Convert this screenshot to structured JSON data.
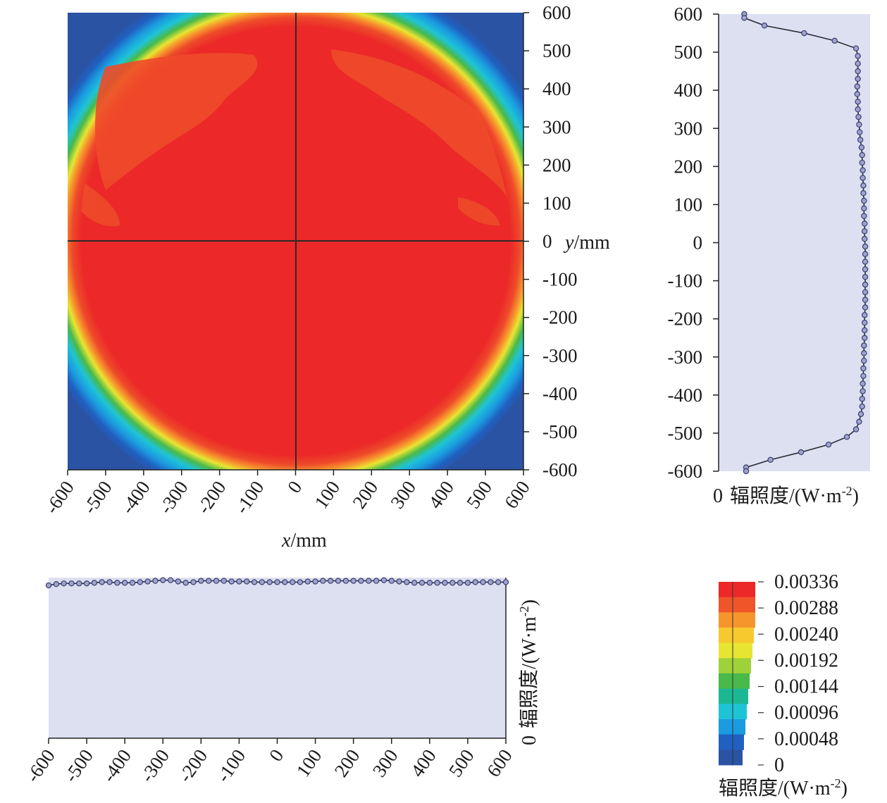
{
  "chart_data": [
    {
      "type": "heatmap",
      "title": "",
      "xlabel_var": "x",
      "xlabel_unit": "/mm",
      "ylabel_var": "y",
      "ylabel_unit": "/mm",
      "xlim": [
        -600,
        600
      ],
      "ylim": [
        -600,
        600
      ],
      "x_ticks": [
        "-600",
        "-500",
        "-400",
        "-300",
        "-200",
        "-100",
        "0",
        "100",
        "200",
        "300",
        "400",
        "500",
        "600"
      ],
      "y_ticks": [
        "600",
        "500",
        "400",
        "300",
        "200",
        "100",
        "0",
        "-100",
        "-200",
        "-300",
        "-400",
        "-500",
        "-600"
      ],
      "description_values": {
        "circle_radius_mm": 600,
        "center_irradiance": 0.00336,
        "outside_irradiance": 0
      },
      "crosshair": {
        "x": 0,
        "y": 0
      },
      "colors": {
        "background": "#2a53a4",
        "inner": "#ec2828",
        "inner_patches": "#ee4a2a"
      }
    },
    {
      "type": "line",
      "orientation": "vertical",
      "xlabel": "辐照度/(W·m",
      "xlabel_sup": "-2",
      "xlabel_close": ")",
      "x_zero_label": "0",
      "ylim": [
        -600,
        600
      ],
      "y_ticks": [
        "600",
        "500",
        "400",
        "300",
        "200",
        "100",
        "0",
        "-100",
        "-200",
        "-300",
        "-400",
        "-500",
        "-600"
      ],
      "y": [
        600,
        590,
        570,
        550,
        530,
        510,
        490,
        470,
        450,
        430,
        410,
        390,
        370,
        350,
        330,
        310,
        290,
        270,
        250,
        230,
        210,
        190,
        170,
        150,
        130,
        110,
        90,
        70,
        50,
        30,
        10,
        -10,
        -30,
        -50,
        -70,
        -90,
        -110,
        -130,
        -150,
        -170,
        -190,
        -210,
        -230,
        -250,
        -270,
        -290,
        -310,
        -330,
        -350,
        -370,
        -390,
        -410,
        -430,
        -450,
        -470,
        -490,
        -510,
        -530,
        -550,
        -570,
        -590,
        -600
      ],
      "values": [
        0.00042,
        0.00042,
        0.00075,
        0.0014,
        0.0019,
        0.00225,
        0.00228,
        0.00228,
        0.00228,
        0.00228,
        0.00227,
        0.00227,
        0.00228,
        0.00228,
        0.00229,
        0.0023,
        0.00231,
        0.00232,
        0.00234,
        0.00235,
        0.00235,
        0.00236,
        0.00236,
        0.00237,
        0.00237,
        0.00238,
        0.00238,
        0.00238,
        0.00239,
        0.00239,
        0.00239,
        0.0024,
        0.0024,
        0.0024,
        0.0024,
        0.0024,
        0.0024,
        0.0024,
        0.0024,
        0.0024,
        0.00239,
        0.00239,
        0.00239,
        0.00239,
        0.00238,
        0.00238,
        0.00238,
        0.00237,
        0.00237,
        0.00236,
        0.00236,
        0.00235,
        0.00235,
        0.00233,
        0.0023,
        0.00225,
        0.0021,
        0.0018,
        0.00135,
        0.00085,
        0.00045,
        0.00045
      ],
      "xlim": [
        0,
        0.00248
      ],
      "colors": {
        "plot_bg": "#dde0f1",
        "line": "#2b2b35",
        "marker_fill": "#9ea3cf",
        "marker_stroke": "#3a3f6e"
      }
    },
    {
      "type": "line",
      "orientation": "horizontal",
      "ylabel": "辐照度/(W·m",
      "ylabel_sup": "-2",
      "ylabel_close": ")",
      "y_zero_label": "0",
      "xlim": [
        -600,
        600
      ],
      "x_ticks": [
        "-600",
        "-500",
        "-400",
        "-300",
        "-200",
        "-100",
        "0",
        "100",
        "200",
        "300",
        "400",
        "500",
        "600"
      ],
      "x": [
        -600,
        -580,
        -560,
        -540,
        -520,
        -500,
        -480,
        -460,
        -440,
        -420,
        -400,
        -380,
        -360,
        -340,
        -320,
        -300,
        -280,
        -260,
        -240,
        -220,
        -200,
        -180,
        -160,
        -140,
        -120,
        -100,
        -80,
        -60,
        -40,
        -20,
        0,
        20,
        40,
        60,
        80,
        100,
        120,
        140,
        160,
        180,
        200,
        220,
        240,
        260,
        280,
        300,
        320,
        340,
        360,
        380,
        400,
        420,
        440,
        460,
        480,
        500,
        520,
        540,
        560,
        580,
        600
      ],
      "values": [
        0.00236,
        0.00238,
        0.00239,
        0.00239,
        0.00239,
        0.00239,
        0.0024,
        0.00241,
        0.00241,
        0.0024,
        0.0024,
        0.0024,
        0.00241,
        0.00242,
        0.00243,
        0.00244,
        0.00244,
        0.00242,
        0.0024,
        0.00241,
        0.00243,
        0.00243,
        0.00243,
        0.00243,
        0.00242,
        0.00242,
        0.00242,
        0.00241,
        0.00241,
        0.00241,
        0.00241,
        0.00241,
        0.00241,
        0.00241,
        0.00242,
        0.00242,
        0.00243,
        0.00243,
        0.00243,
        0.00243,
        0.00243,
        0.00243,
        0.00243,
        0.00243,
        0.00244,
        0.00243,
        0.00242,
        0.00241,
        0.0024,
        0.0024,
        0.0024,
        0.0024,
        0.0024,
        0.0024,
        0.0024,
        0.0024,
        0.00241,
        0.00241,
        0.00241,
        0.00241,
        0.00241
      ],
      "ylim": [
        0,
        0.00248
      ],
      "colors": {
        "plot_bg": "#dde0f1",
        "line": "#2b2b35",
        "marker_fill": "#9ea3cf",
        "marker_stroke": "#3a3f6e"
      }
    },
    {
      "type": "colorbar",
      "label": "辐照度/(W·m",
      "label_sup": "-2",
      "label_close": ")",
      "ticks": [
        "0.00336",
        "0.00288",
        "0.00240",
        "0.00192",
        "0.00144",
        "0.00096",
        "0.00048",
        "0"
      ],
      "range": [
        0,
        0.00336
      ],
      "colors": [
        "#ec2828",
        "#f0552a",
        "#f7952d",
        "#f7c92f",
        "#e8e532",
        "#9fd13a",
        "#49b94a",
        "#1cb893",
        "#1ec4d5",
        "#1b9be0",
        "#2060c0",
        "#2a53a4"
      ]
    }
  ]
}
